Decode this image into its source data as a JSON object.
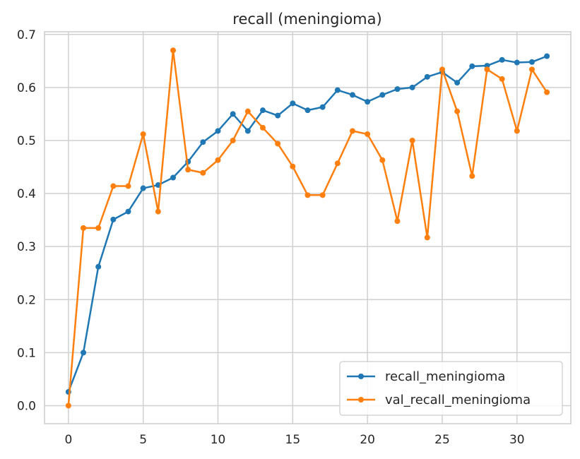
{
  "chart_data": {
    "type": "line",
    "title": "recall (meningioma)",
    "xlabel": "",
    "ylabel": "",
    "xlim": [
      -1.6,
      33.6
    ],
    "ylim": [
      -0.034,
      0.705
    ],
    "xticks": [
      0,
      5,
      10,
      15,
      20,
      25,
      30
    ],
    "yticks": [
      0.0,
      0.1,
      0.2,
      0.3,
      0.4,
      0.5,
      0.6,
      0.7
    ],
    "xtick_labels": [
      "0",
      "5",
      "10",
      "15",
      "20",
      "25",
      "30"
    ],
    "ytick_labels": [
      "0.0",
      "0.1",
      "0.2",
      "0.3",
      "0.4",
      "0.5",
      "0.6",
      "0.7"
    ],
    "grid": true,
    "legend_position": "bottom-right",
    "x": [
      0,
      1,
      2,
      3,
      4,
      5,
      6,
      7,
      8,
      9,
      10,
      11,
      12,
      13,
      14,
      15,
      16,
      17,
      18,
      19,
      20,
      21,
      22,
      23,
      24,
      25,
      26,
      27,
      28,
      29,
      30,
      31,
      32
    ],
    "series": [
      {
        "name": "recall_meningioma",
        "color": "#1f77b4",
        "values": [
          0.026,
          0.1,
          0.262,
          0.351,
          0.366,
          0.41,
          0.416,
          0.43,
          0.46,
          0.497,
          0.518,
          0.55,
          0.518,
          0.557,
          0.547,
          0.57,
          0.557,
          0.563,
          0.595,
          0.586,
          0.573,
          0.586,
          0.597,
          0.6,
          0.62,
          0.629,
          0.609,
          0.64,
          0.641,
          0.652,
          0.647,
          0.648,
          0.659
        ]
      },
      {
        "name": "val_recall_meningioma",
        "color": "#ff7f0e",
        "values": [
          0.0,
          0.335,
          0.335,
          0.414,
          0.414,
          0.512,
          0.366,
          0.67,
          0.445,
          0.439,
          0.463,
          0.5,
          0.555,
          0.524,
          0.494,
          0.451,
          0.397,
          0.397,
          0.457,
          0.518,
          0.512,
          0.463,
          0.348,
          0.5,
          0.317,
          0.634,
          0.555,
          0.433,
          0.634,
          0.616,
          0.518,
          0.634,
          0.591
        ]
      }
    ]
  }
}
